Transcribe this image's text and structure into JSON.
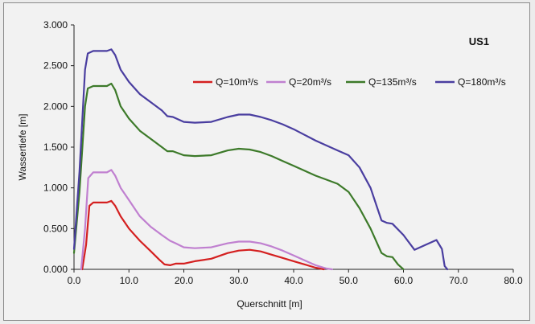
{
  "chart_data": {
    "type": "line",
    "title": "US1",
    "xlabel": "Querschnitt [m]",
    "ylabel": "Wassertiefe [m]",
    "xlim": [
      0,
      80
    ],
    "ylim": [
      0,
      3
    ],
    "xticks": [
      "0.0",
      "10.0",
      "20.0",
      "30.0",
      "40.0",
      "50.0",
      "60.0",
      "70.0",
      "80.0"
    ],
    "yticks": [
      "0.000",
      "0.500",
      "1.000",
      "1.500",
      "2.000",
      "2.500",
      "3.000"
    ],
    "grid": false,
    "legend": "top",
    "series": [
      {
        "name": "Q=10m³/s",
        "color": "#d42020",
        "points": [
          [
            1.5,
            0
          ],
          [
            2.2,
            0.3
          ],
          [
            2.8,
            0.78
          ],
          [
            3.5,
            0.82
          ],
          [
            5,
            0.82
          ],
          [
            6,
            0.82
          ],
          [
            6.8,
            0.84
          ],
          [
            7.5,
            0.78
          ],
          [
            8.5,
            0.65
          ],
          [
            10,
            0.5
          ],
          [
            12,
            0.35
          ],
          [
            14,
            0.22
          ],
          [
            15.5,
            0.12
          ],
          [
            16.5,
            0.06
          ],
          [
            17.5,
            0.05
          ],
          [
            18.5,
            0.07
          ],
          [
            20,
            0.07
          ],
          [
            22,
            0.1
          ],
          [
            25,
            0.13
          ],
          [
            28,
            0.2
          ],
          [
            30,
            0.23
          ],
          [
            32,
            0.24
          ],
          [
            34,
            0.22
          ],
          [
            36,
            0.18
          ],
          [
            38,
            0.14
          ],
          [
            40,
            0.1
          ],
          [
            42,
            0.06
          ],
          [
            44,
            0.02
          ],
          [
            45.5,
            0
          ]
        ]
      },
      {
        "name": "Q=20m³/s",
        "color": "#c080d0",
        "points": [
          [
            1.3,
            0
          ],
          [
            2,
            0.5
          ],
          [
            2.6,
            1.12
          ],
          [
            3.5,
            1.19
          ],
          [
            5,
            1.19
          ],
          [
            6,
            1.19
          ],
          [
            6.8,
            1.22
          ],
          [
            7.5,
            1.15
          ],
          [
            8.5,
            1.0
          ],
          [
            10,
            0.85
          ],
          [
            12,
            0.65
          ],
          [
            14,
            0.52
          ],
          [
            16,
            0.42
          ],
          [
            17.5,
            0.35
          ],
          [
            18.5,
            0.32
          ],
          [
            20,
            0.27
          ],
          [
            22,
            0.26
          ],
          [
            25,
            0.27
          ],
          [
            28,
            0.32
          ],
          [
            30,
            0.34
          ],
          [
            32,
            0.34
          ],
          [
            34,
            0.32
          ],
          [
            36,
            0.28
          ],
          [
            38,
            0.23
          ],
          [
            40,
            0.17
          ],
          [
            42,
            0.11
          ],
          [
            44,
            0.05
          ],
          [
            46,
            0.01
          ],
          [
            47,
            0
          ]
        ]
      },
      {
        "name": "Q=135m³/s",
        "color": "#3d7a2a",
        "points": [
          [
            0,
            0.2
          ],
          [
            1,
            0.95
          ],
          [
            2,
            2.0
          ],
          [
            2.5,
            2.22
          ],
          [
            3.5,
            2.25
          ],
          [
            5,
            2.25
          ],
          [
            6,
            2.25
          ],
          [
            6.8,
            2.28
          ],
          [
            7.5,
            2.2
          ],
          [
            8.5,
            2.0
          ],
          [
            10,
            1.85
          ],
          [
            12,
            1.7
          ],
          [
            14,
            1.6
          ],
          [
            16,
            1.5
          ],
          [
            17,
            1.45
          ],
          [
            18,
            1.45
          ],
          [
            20,
            1.4
          ],
          [
            22,
            1.39
          ],
          [
            25,
            1.4
          ],
          [
            28,
            1.46
          ],
          [
            30,
            1.48
          ],
          [
            32,
            1.47
          ],
          [
            34,
            1.44
          ],
          [
            36,
            1.39
          ],
          [
            38,
            1.33
          ],
          [
            40,
            1.27
          ],
          [
            42,
            1.21
          ],
          [
            44,
            1.15
          ],
          [
            46,
            1.1
          ],
          [
            48,
            1.05
          ],
          [
            50,
            0.95
          ],
          [
            52,
            0.75
          ],
          [
            54,
            0.5
          ],
          [
            56,
            0.2
          ],
          [
            57,
            0.16
          ],
          [
            58,
            0.15
          ],
          [
            59,
            0.06
          ],
          [
            60,
            0
          ]
        ]
      },
      {
        "name": "Q=180m³/s",
        "color": "#4a3ea0",
        "points": [
          [
            0,
            0.25
          ],
          [
            1,
            1.2
          ],
          [
            2,
            2.45
          ],
          [
            2.5,
            2.65
          ],
          [
            3.5,
            2.68
          ],
          [
            5,
            2.68
          ],
          [
            6,
            2.68
          ],
          [
            6.8,
            2.7
          ],
          [
            7.5,
            2.63
          ],
          [
            8.5,
            2.45
          ],
          [
            10,
            2.3
          ],
          [
            12,
            2.15
          ],
          [
            14,
            2.05
          ],
          [
            16,
            1.95
          ],
          [
            17,
            1.88
          ],
          [
            18,
            1.87
          ],
          [
            20,
            1.81
          ],
          [
            22,
            1.8
          ],
          [
            25,
            1.81
          ],
          [
            28,
            1.87
          ],
          [
            30,
            1.9
          ],
          [
            32,
            1.9
          ],
          [
            34,
            1.87
          ],
          [
            36,
            1.83
          ],
          [
            38,
            1.78
          ],
          [
            40,
            1.72
          ],
          [
            42,
            1.65
          ],
          [
            44,
            1.58
          ],
          [
            46,
            1.52
          ],
          [
            48,
            1.46
          ],
          [
            50,
            1.4
          ],
          [
            52,
            1.25
          ],
          [
            54,
            1.0
          ],
          [
            56,
            0.6
          ],
          [
            57,
            0.57
          ],
          [
            58,
            0.56
          ],
          [
            60,
            0.42
          ],
          [
            62,
            0.24
          ],
          [
            64,
            0.3
          ],
          [
            66,
            0.36
          ],
          [
            67,
            0.25
          ],
          [
            67.5,
            0.04
          ],
          [
            68,
            0
          ]
        ]
      }
    ]
  }
}
